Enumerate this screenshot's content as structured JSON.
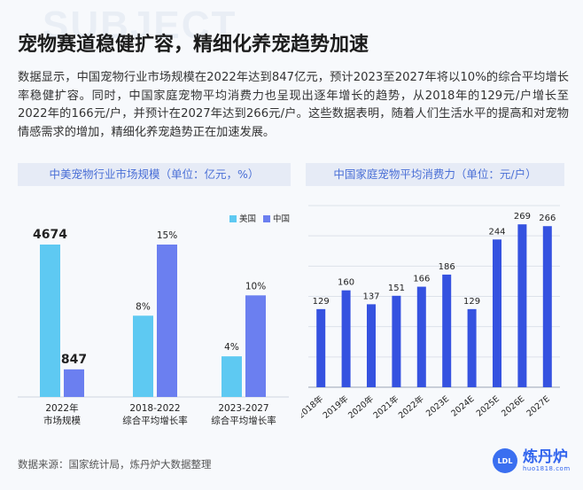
{
  "page": {
    "bg_word": "SUBJECT",
    "title": "宠物赛道稳健扩容，精细化养宠趋势加速",
    "paragraph": "数据显示，中国宠物行业市场规模在2022年达到847亿元，预计2023至2027年将以10%的综合平均增长率稳健扩容。同时，中国家庭宠物平均消费力也呈现出逐年增长的趋势，从2018年的129元/户增长至2022年的166元/户，并预计在2027年达到266元/户。这些数据表明，随着人们生活水平的提高和对宠物情感需求的增加，精细化养宠趋势正在加速发展。",
    "source": "数据来源：国家统计局，炼丹炉大数据整理",
    "logo": {
      "icon": "logo-icon",
      "mark_text": "LDL",
      "name": "炼丹炉",
      "url": "huo1818.com"
    }
  },
  "colors": {
    "usa": "#5ec9f2",
    "china": "#6b7ff0",
    "blue_bar": "#3552e0",
    "header_text": "#4a6fd6"
  },
  "chart_data": [
    {
      "type": "bar",
      "title": "中美宠物行业市场规模（单位：亿元，%）",
      "categories": [
        [
          "2022年",
          "市场规模"
        ],
        [
          "2018-2022",
          "综合平均增长率"
        ],
        [
          "2023-2027",
          "综合平均增长率"
        ]
      ],
      "series": [
        {
          "name": "美国",
          "values": [
            4674,
            8,
            4
          ],
          "labels": [
            "4674",
            "8%",
            "4%"
          ]
        },
        {
          "name": "中国",
          "values": [
            847,
            15,
            10
          ],
          "labels": [
            "847",
            "15%",
            "10%"
          ]
        }
      ],
      "legend": "top-right",
      "grid": false,
      "note": "first group in 亿元, other groups in %"
    },
    {
      "type": "bar",
      "title": "中国家庭宠物平均消费力（单位：元/户）",
      "categories": [
        "2018年",
        "2019年",
        "2020年",
        "2021年",
        "2022年",
        "2023E",
        "2024E",
        "2025E",
        "2026E",
        "2027E"
      ],
      "values": [
        129,
        160,
        137,
        151,
        166,
        186,
        129,
        244,
        269,
        266
      ],
      "ylim": [
        0,
        300
      ],
      "grid": true
    }
  ]
}
